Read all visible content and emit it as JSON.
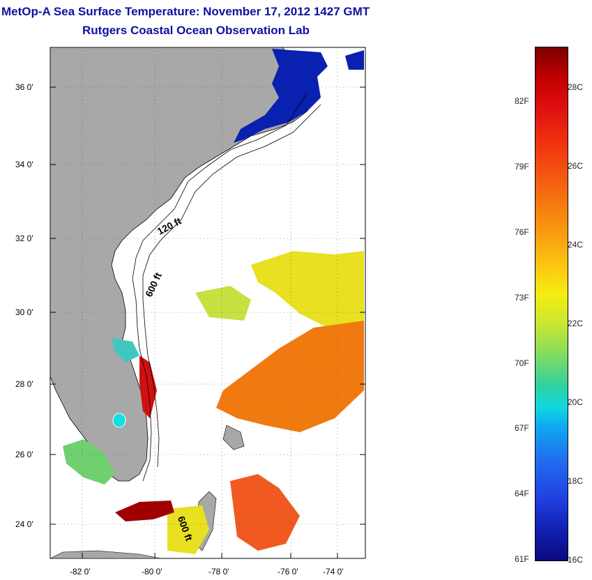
{
  "title": "MetOp-A Sea Surface Temperature:  November 17, 2012 1427 GMT",
  "subtitle": "Rutgers Coastal Ocean Observation Lab",
  "lat_ticks": [
    "36 0'",
    "34 0'",
    "32 0'",
    "30 0'",
    "28 0'",
    "26 0'",
    "24 0'"
  ],
  "lon_ticks": [
    "-82 0'",
    "-80 0'",
    "-78 0'",
    "-76 0'",
    "-74 0'"
  ],
  "contour_labels": {
    "c120": "120 ft",
    "c600a": "600 ft",
    "c600b": "600 ft"
  },
  "colorbar": {
    "fahrenheit": [
      "82F",
      "79F",
      "76F",
      "73F",
      "70F",
      "67F",
      "64F",
      "61F"
    ],
    "celsius": [
      "28C",
      "26C",
      "24C",
      "22C",
      "20C",
      "18C",
      "16C"
    ],
    "range_c": [
      16,
      29
    ]
  },
  "colors": {
    "land": "#a8a8a8",
    "title": "#1010a0",
    "cold": "#0a20b0",
    "warm": "#f07010",
    "hot": "#b00000"
  }
}
